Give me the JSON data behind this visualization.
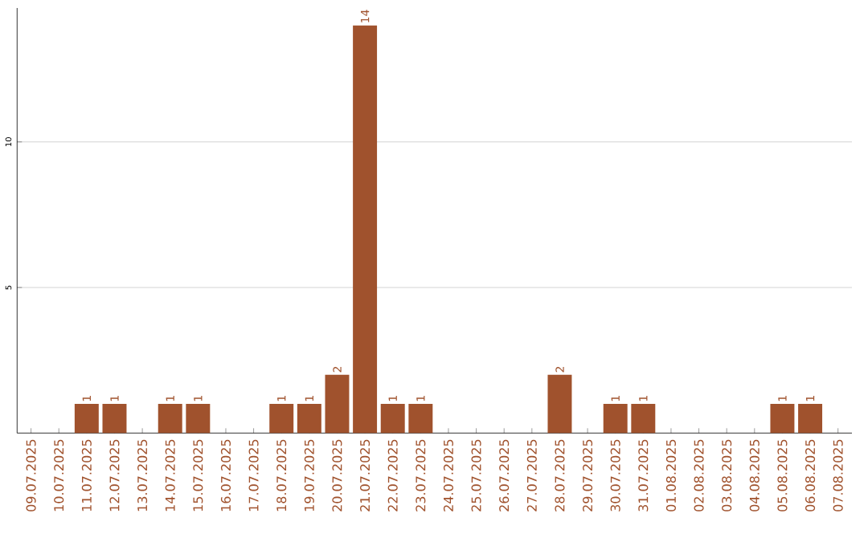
{
  "chart_data": {
    "type": "bar",
    "categories": [
      "09.07.2025",
      "10.07.2025",
      "11.07.2025",
      "12.07.2025",
      "13.07.2025",
      "14.07.2025",
      "15.07.2025",
      "16.07.2025",
      "17.07.2025",
      "18.07.2025",
      "19.07.2025",
      "20.07.2025",
      "21.07.2025",
      "22.07.2025",
      "23.07.2025",
      "24.07.2025",
      "25.07.2025",
      "26.07.2025",
      "27.07.2025",
      "28.07.2025",
      "29.07.2025",
      "30.07.2025",
      "31.07.2025",
      "01.08.2025",
      "02.08.2025",
      "03.08.2025",
      "04.08.2025",
      "05.08.2025",
      "06.08.2025",
      "07.08.2025"
    ],
    "values": [
      0,
      0,
      1,
      1,
      0,
      1,
      1,
      0,
      0,
      1,
      1,
      2,
      14,
      1,
      1,
      0,
      0,
      0,
      0,
      2,
      0,
      1,
      1,
      0,
      0,
      0,
      0,
      1,
      1,
      0
    ],
    "value_labels": [
      null,
      null,
      "1",
      "1",
      null,
      "1",
      "1",
      null,
      null,
      "1",
      "1",
      "2",
      "14",
      "1",
      "1",
      null,
      null,
      null,
      null,
      "2",
      null,
      "1",
      "1",
      null,
      null,
      null,
      null,
      "1",
      "1",
      null
    ],
    "color": "#a0522d",
    "ylim": [
      0,
      14.6
    ],
    "yticks": [
      5,
      10
    ],
    "grid": "y"
  }
}
